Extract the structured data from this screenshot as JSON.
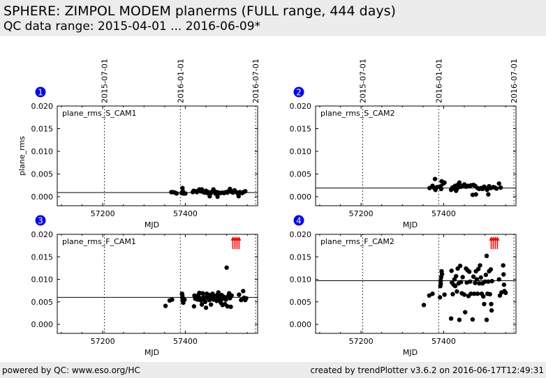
{
  "header": {
    "title": "SPHERE: ZIMPOL MODEM planerms (FULL range, 444 days)",
    "subtitle": "QC data range: 2015-04-01 ... 2016-06-09*"
  },
  "footer": {
    "left": "powered by QC: www.eso.org/HC",
    "right": "created by trendPlotter v3.6.2 on 2016-06-17T12:49:31"
  },
  "colors": {
    "badge": "#0000ff",
    "points": "#000000",
    "arrows": "#ff0000"
  },
  "chart_data": [
    {
      "type": "scatter",
      "badge": "1",
      "label": "plane_rms_S_CAM1",
      "xlabel": "MJD",
      "ylabel": "plane_rms",
      "xlim": [
        57090,
        57575
      ],
      "ylim": [
        -0.002,
        0.02
      ],
      "xticks": [
        57200,
        57400
      ],
      "yticks": [
        "0.000",
        "0.005",
        "0.010",
        "0.015",
        "0.020"
      ],
      "date_lines": [
        {
          "mjd": 57204,
          "label": "2015-07-01"
        },
        {
          "mjd": 57388,
          "label": "2016-01-01"
        },
        {
          "mjd": 57570,
          "label": "2016-07-01"
        }
      ],
      "reference_line": 0.0009,
      "outliers_up": [],
      "points": [
        [
          57366,
          0.001
        ],
        [
          57370,
          0.001
        ],
        [
          57375,
          0.0009
        ],
        [
          57379,
          0.0007
        ],
        [
          57391,
          0.0008
        ],
        [
          57393,
          0.0019
        ],
        [
          57394,
          0.0012
        ],
        [
          57396,
          0.0007
        ],
        [
          57400,
          0.0007
        ],
        [
          57418,
          0.001
        ],
        [
          57420,
          0.0013
        ],
        [
          57424,
          0.0012
        ],
        [
          57428,
          0.001
        ],
        [
          57432,
          0.0014
        ],
        [
          57434,
          0.0016
        ],
        [
          57437,
          0.0012
        ],
        [
          57440,
          0.0016
        ],
        [
          57442,
          0.0011
        ],
        [
          57446,
          0.0009
        ],
        [
          57450,
          0.0013
        ],
        [
          57453,
          0.0008
        ],
        [
          57456,
          0.001
        ],
        [
          57459,
          0.0001
        ],
        [
          57462,
          0.0008
        ],
        [
          57465,
          0.0011
        ],
        [
          57468,
          0.0016
        ],
        [
          57470,
          0.0012
        ],
        [
          57473,
          0.0007
        ],
        [
          57476,
          0.001
        ],
        [
          57478,
          0.0
        ],
        [
          57481,
          0.0009
        ],
        [
          57485,
          0.0008
        ],
        [
          57490,
          0.0009
        ],
        [
          57494,
          0.0008
        ],
        [
          57498,
          0.001
        ],
        [
          57502,
          0.0009
        ],
        [
          57505,
          0.0012
        ],
        [
          57508,
          0.0017
        ],
        [
          57511,
          0.0011
        ],
        [
          57515,
          0.0009
        ],
        [
          57519,
          0.0014
        ],
        [
          57522,
          0.0011
        ],
        [
          57526,
          0.0008
        ],
        [
          57529,
          0.0001
        ],
        [
          57532,
          0.001
        ],
        [
          57537,
          0.0008
        ],
        [
          57541,
          0.001
        ],
        [
          57545,
          0.0012
        ]
      ]
    },
    {
      "type": "scatter",
      "badge": "2",
      "label": "plane_rms_S_CAM2",
      "xlabel": "MJD",
      "ylabel": "",
      "xlim": [
        57090,
        57575
      ],
      "ylim": [
        -0.002,
        0.02
      ],
      "xticks": [
        57200,
        57400
      ],
      "yticks": [
        "0.000",
        "0.005",
        "0.010",
        "0.015",
        "0.020"
      ],
      "date_lines": [
        {
          "mjd": 57204,
          "label": "2015-07-01"
        },
        {
          "mjd": 57388,
          "label": "2016-01-01"
        },
        {
          "mjd": 57570,
          "label": "2016-07-01"
        }
      ],
      "reference_line": 0.0019,
      "outliers_up": [],
      "points": [
        [
          57366,
          0.0019
        ],
        [
          57373,
          0.0024
        ],
        [
          57376,
          0.002
        ],
        [
          57379,
          0.0039
        ],
        [
          57380,
          0.0015
        ],
        [
          57384,
          0.0021
        ],
        [
          57393,
          0.0023
        ],
        [
          57394,
          0.0017
        ],
        [
          57395,
          0.0034
        ],
        [
          57399,
          0.0029
        ],
        [
          57402,
          0.0031
        ],
        [
          57418,
          0.0015
        ],
        [
          57421,
          0.002
        ],
        [
          57424,
          0.0021
        ],
        [
          57426,
          0.0018
        ],
        [
          57428,
          0.0024
        ],
        [
          57430,
          0.0013
        ],
        [
          57432,
          0.0017
        ],
        [
          57434,
          0.0026
        ],
        [
          57436,
          0.0021
        ],
        [
          57438,
          0.0031
        ],
        [
          57442,
          0.0022
        ],
        [
          57446,
          0.0024
        ],
        [
          57450,
          0.0027
        ],
        [
          57454,
          0.0022
        ],
        [
          57458,
          0.0024
        ],
        [
          57462,
          0.0023
        ],
        [
          57466,
          0.0025
        ],
        [
          57470,
          0.0004
        ],
        [
          57472,
          0.0026
        ],
        [
          57476,
          0.0024
        ],
        [
          57478,
          0.0005
        ],
        [
          57482,
          0.0019
        ],
        [
          57486,
          0.0017
        ],
        [
          57490,
          0.0019
        ],
        [
          57494,
          0.0017
        ],
        [
          57498,
          0.0022
        ],
        [
          57502,
          0.0019
        ],
        [
          57505,
          0.0015
        ],
        [
          57508,
          0.0005
        ],
        [
          57510,
          0.0023
        ],
        [
          57514,
          0.0019
        ],
        [
          57520,
          0.0021
        ],
        [
          57524,
          0.002
        ],
        [
          57528,
          0.0018
        ],
        [
          57534,
          0.0029
        ],
        [
          57538,
          0.002
        ]
      ]
    },
    {
      "type": "scatter",
      "badge": "3",
      "label": "plane_rms_F_CAM1",
      "xlabel": "MJD",
      "ylabel": "",
      "xlim": [
        57090,
        57575
      ],
      "ylim": [
        -0.002,
        0.02
      ],
      "xticks": [
        57200,
        57400
      ],
      "yticks": [
        "0.000",
        "0.005",
        "0.010",
        "0.015",
        "0.020"
      ],
      "date_lines": [
        {
          "mjd": 57204,
          "label": "2015-07-01"
        },
        {
          "mjd": 57388,
          "label": "2016-01-01"
        },
        {
          "mjd": 57570,
          "label": "2016-07-01"
        }
      ],
      "reference_line": 0.006,
      "outliers_up": [
        57515,
        57520,
        57525,
        57530
      ],
      "points": [
        [
          57352,
          0.0041
        ],
        [
          57362,
          0.0053
        ],
        [
          57368,
          0.0055
        ],
        [
          57392,
          0.0068
        ],
        [
          57393,
          0.0063
        ],
        [
          57393,
          0.0058
        ],
        [
          57394,
          0.0052
        ],
        [
          57395,
          0.0048
        ],
        [
          57398,
          0.0055
        ],
        [
          57421,
          0.004
        ],
        [
          57422,
          0.0064
        ],
        [
          57424,
          0.0057
        ],
        [
          57426,
          0.0061
        ],
        [
          57430,
          0.0055
        ],
        [
          57432,
          0.0066
        ],
        [
          57434,
          0.007
        ],
        [
          57436,
          0.0058
        ],
        [
          57438,
          0.0053
        ],
        [
          57440,
          0.0044
        ],
        [
          57442,
          0.0069
        ],
        [
          57444,
          0.0061
        ],
        [
          57446,
          0.0056
        ],
        [
          57448,
          0.005
        ],
        [
          57450,
          0.0037
        ],
        [
          57452,
          0.0068
        ],
        [
          57454,
          0.0062
        ],
        [
          57456,
          0.0058
        ],
        [
          57458,
          0.0054
        ],
        [
          57460,
          0.0065
        ],
        [
          57462,
          0.0044
        ],
        [
          57464,
          0.006
        ],
        [
          57466,
          0.0068
        ],
        [
          57468,
          0.0055
        ],
        [
          57470,
          0.0062
        ],
        [
          57472,
          0.0057
        ],
        [
          57474,
          0.0063
        ],
        [
          57476,
          0.0052
        ],
        [
          57478,
          0.0066
        ],
        [
          57480,
          0.0071
        ],
        [
          57482,
          0.0059
        ],
        [
          57484,
          0.0053
        ],
        [
          57486,
          0.0048
        ],
        [
          57488,
          0.0065
        ],
        [
          57490,
          0.0043
        ],
        [
          57492,
          0.0057
        ],
        [
          57494,
          0.0061
        ],
        [
          57496,
          0.0045
        ],
        [
          57498,
          0.0055
        ],
        [
          57500,
          0.0126
        ],
        [
          57502,
          0.004
        ],
        [
          57504,
          0.0063
        ],
        [
          57506,
          0.0069
        ],
        [
          57508,
          0.0058
        ],
        [
          57510,
          0.0039
        ],
        [
          57512,
          0.0064
        ],
        [
          57530,
          0.0066
        ],
        [
          57535,
          0.0054
        ],
        [
          57540,
          0.0074
        ],
        [
          57542,
          0.0059
        ],
        [
          57545,
          0.0054
        ],
        [
          57547,
          0.0058
        ]
      ]
    },
    {
      "type": "scatter",
      "badge": "4",
      "label": "plane_rms_F_CAM2",
      "xlabel": "MJD",
      "ylabel": "",
      "xlim": [
        57090,
        57575
      ],
      "ylim": [
        -0.002,
        0.02
      ],
      "xticks": [
        57200,
        57400
      ],
      "yticks": [
        "0.000",
        "0.005",
        "0.010",
        "0.015",
        "0.020"
      ],
      "date_lines": [
        {
          "mjd": 57204,
          "label": "2015-07-01"
        },
        {
          "mjd": 57388,
          "label": "2016-01-01"
        },
        {
          "mjd": 57570,
          "label": "2016-07-01"
        }
      ],
      "reference_line": 0.0097,
      "outliers_up": [
        57515,
        57520,
        57525,
        57530
      ],
      "points": [
        [
          57352,
          0.0043
        ],
        [
          57365,
          0.0064
        ],
        [
          57373,
          0.0068
        ],
        [
          57391,
          0.006
        ],
        [
          57392,
          0.0085
        ],
        [
          57393,
          0.009
        ],
        [
          57393,
          0.0097
        ],
        [
          57394,
          0.0105
        ],
        [
          57395,
          0.0118
        ],
        [
          57396,
          0.0112
        ],
        [
          57402,
          0.0066
        ],
        [
          57418,
          0.0013
        ],
        [
          57419,
          0.0119
        ],
        [
          57420,
          0.0093
        ],
        [
          57422,
          0.0067
        ],
        [
          57424,
          0.0088
        ],
        [
          57426,
          0.01
        ],
        [
          57428,
          0.0085
        ],
        [
          57430,
          0.0107
        ],
        [
          57432,
          0.0073
        ],
        [
          57434,
          0.0124
        ],
        [
          57436,
          0.0091
        ],
        [
          57438,
          0.001
        ],
        [
          57440,
          0.013
        ],
        [
          57442,
          0.0094
        ],
        [
          57444,
          0.0069
        ],
        [
          57446,
          0.0105
        ],
        [
          57450,
          0.0066
        ],
        [
          57452,
          0.0027
        ],
        [
          57454,
          0.0124
        ],
        [
          57456,
          0.0093
        ],
        [
          57458,
          0.012
        ],
        [
          57460,
          0.0063
        ],
        [
          57462,
          0.0117
        ],
        [
          57464,
          0.0095
        ],
        [
          57466,
          0.0068
        ],
        [
          57470,
          0.0011
        ],
        [
          57472,
          0.0106
        ],
        [
          57474,
          0.0068
        ],
        [
          57476,
          0.0092
        ],
        [
          57478,
          0.0118
        ],
        [
          57480,
          0.01
        ],
        [
          57482,
          0.0068
        ],
        [
          57484,
          0.0123
        ],
        [
          57486,
          0.0091
        ],
        [
          57488,
          0.0131
        ],
        [
          57490,
          0.0104
        ],
        [
          57492,
          0.0068
        ],
        [
          57494,
          0.0091
        ],
        [
          57496,
          0.0062
        ],
        [
          57498,
          0.0045
        ],
        [
          57500,
          0.0095
        ],
        [
          57502,
          0.011
        ],
        [
          57504,
          0.001
        ],
        [
          57504,
          0.0152
        ],
        [
          57506,
          0.0068
        ],
        [
          57508,
          0.0095
        ],
        [
          57510,
          0.0118
        ],
        [
          57512,
          0.0067
        ],
        [
          57514,
          0.0122
        ],
        [
          57515,
          0.0045
        ],
        [
          57516,
          0.0031
        ],
        [
          57517,
          0.0096
        ],
        [
          57534,
          0.01
        ],
        [
          57536,
          0.0064
        ],
        [
          57540,
          0.0071
        ],
        [
          57544,
          0.0131
        ],
        [
          57545,
          0.0111
        ],
        [
          57546,
          0.0088
        ],
        [
          57547,
          0.0074
        ],
        [
          57550,
          0.007
        ]
      ]
    }
  ]
}
